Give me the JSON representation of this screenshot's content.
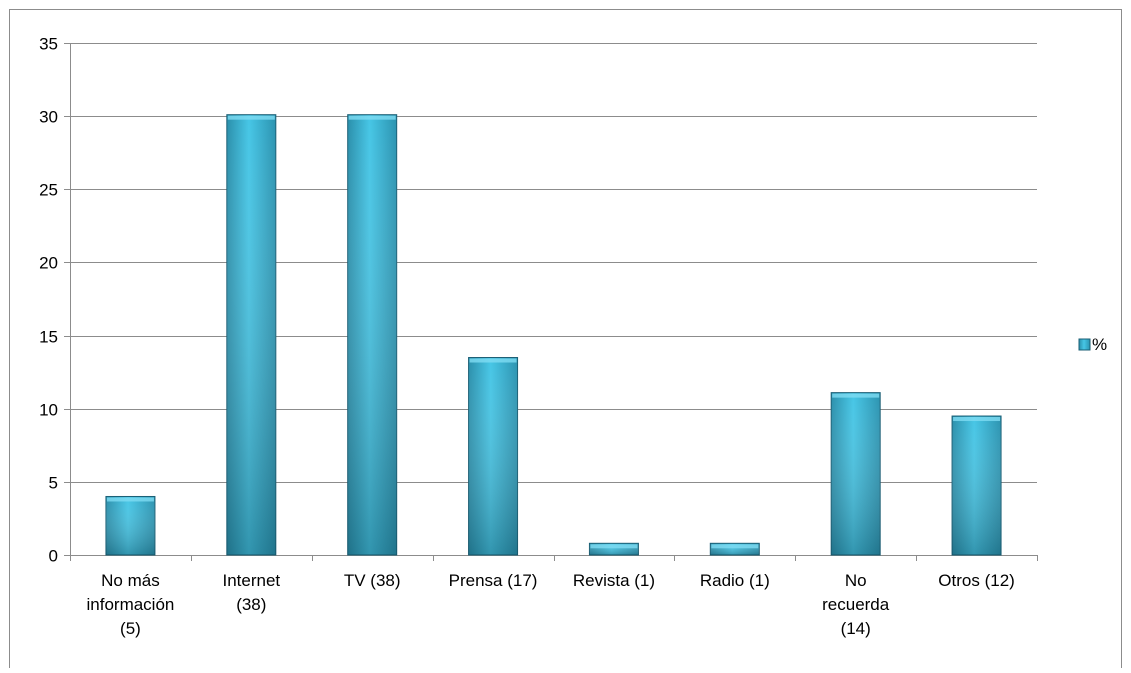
{
  "chart_data": {
    "type": "bar",
    "categories": [
      [
        "No más",
        "información",
        "(5)"
      ],
      [
        "Internet",
        "(38)"
      ],
      [
        "TV (38)"
      ],
      [
        "Prensa (17)"
      ],
      [
        "Revista (1)"
      ],
      [
        "Radio (1)"
      ],
      [
        "No",
        "recuerda",
        "(14)"
      ],
      [
        "Otros (12)"
      ]
    ],
    "series": [
      {
        "name": "%",
        "values": [
          4.0,
          30.1,
          30.1,
          13.5,
          0.8,
          0.8,
          11.1,
          9.5
        ]
      }
    ],
    "title": "",
    "xlabel": "",
    "ylabel": "",
    "ylim": [
      0,
      35
    ],
    "yticks": [
      0,
      5,
      10,
      15,
      20,
      25,
      30,
      35
    ],
    "grid": true,
    "legend": "right",
    "colors": {
      "bar_light": "#46c6e6",
      "bar_dark": "#1e6f88",
      "bar_edge": "#1b5f75",
      "grid": "#8c8c8c",
      "axis": "#8c8c8c",
      "text": "#000000"
    }
  }
}
